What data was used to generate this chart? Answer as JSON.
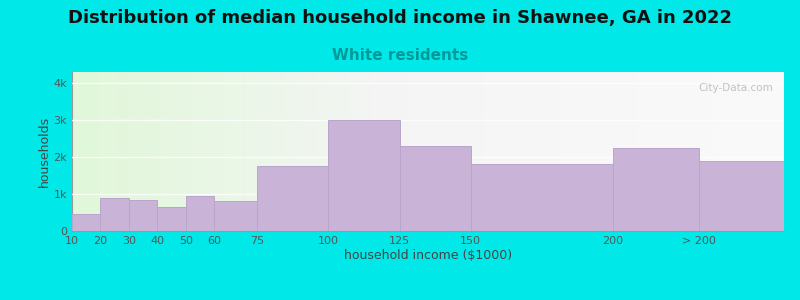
{
  "title": "Distribution of median household income in Shawnee, GA in 2022",
  "subtitle": "White residents",
  "xlabel": "household income ($1000)",
  "ylabel": "households",
  "bin_edges": [
    10,
    20,
    30,
    40,
    50,
    60,
    75,
    100,
    125,
    150,
    200,
    230,
    260
  ],
  "bin_labels": [
    "10",
    "20",
    "30",
    "40",
    "50",
    "60",
    "75",
    "100",
    "125",
    "150",
    "200",
    "> 200"
  ],
  "values": [
    450,
    900,
    850,
    650,
    950,
    800,
    1750,
    3000,
    2300,
    1800,
    2250,
    1900
  ],
  "bar_color": "#c9b4d8",
  "bar_edge_color": "#b8a5cc",
  "background_color": "#00e8e8",
  "plot_bg_left_color": "#e4f5dc",
  "plot_bg_right_color": "#f0f0f0",
  "yticks": [
    0,
    1000,
    2000,
    3000,
    4000
  ],
  "ytick_labels": [
    "0",
    "1k",
    "2k",
    "3k",
    "4k"
  ],
  "ylim": [
    0,
    4300
  ],
  "title_fontsize": 13,
  "subtitle_fontsize": 11,
  "subtitle_color": "#009999",
  "axis_label_fontsize": 9,
  "tick_label_fontsize": 8,
  "watermark_text": "City-Data.com",
  "watermark_color": "#b8b8b8"
}
